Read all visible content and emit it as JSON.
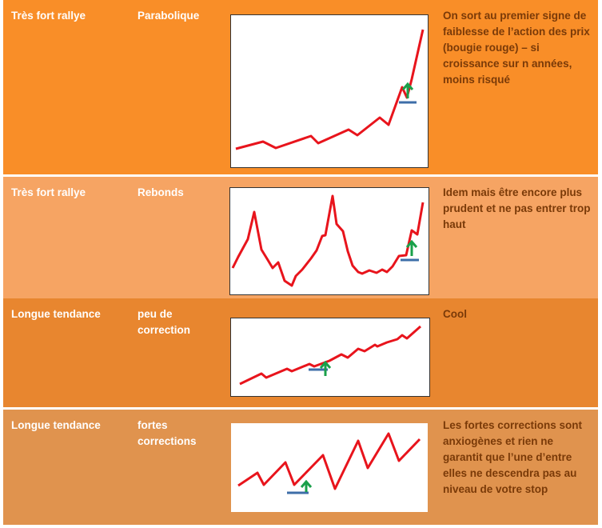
{
  "rows": [
    {
      "situation": "Très fort rallye",
      "profile": "Parabolique",
      "comment": "On sort au premier signe de faiblesse de l’action des prix (bougie rouge) – si croissance sur n années, moins risqué",
      "bg": "#f98e28"
    },
    {
      "situation": "Très fort rallye",
      "profile": "Rebonds",
      "comment": "Idem mais être encore plus prudent et ne pas entrer trop haut",
      "bg": "#f6a463"
    },
    {
      "situation": "Longue tendance",
      "profile": "peu de correction",
      "comment": "Cool",
      "bg": "#e8862f"
    },
    {
      "situation": "Longue tendance",
      "profile": "fortes corrections",
      "comment": "Les fortes corrections sont anxiogènes et rien ne garantit que l’une d’entre elles ne descendra pas au niveau de votre stop",
      "bg": "#e0934e"
    }
  ],
  "colors": {
    "line": "#e8141c",
    "arrow": "#1aa04a",
    "stop": "#3d6ea8",
    "divider": "#ffffff"
  },
  "icons": [
    "up-arrow-icon",
    "stop-line-icon"
  ]
}
